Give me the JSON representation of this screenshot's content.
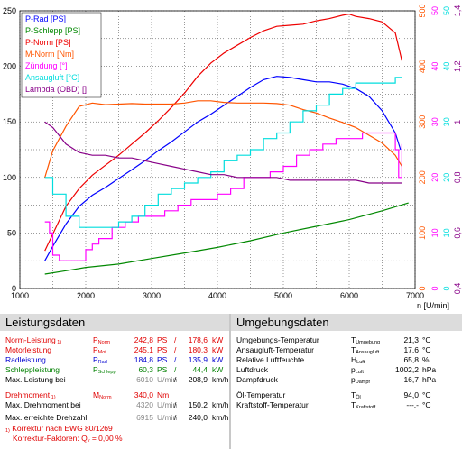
{
  "chart_data": {
    "type": "line",
    "x_axis": {
      "min": 1000,
      "max": 7000,
      "ticks": [
        "1000",
        "2000",
        "3000",
        "4000",
        "5000",
        "6000",
        "7000"
      ],
      "unit_label": "n [U/min]"
    },
    "left_axis": {
      "min": 0,
      "max": 250,
      "ticks": [
        "0",
        "50",
        "100",
        "150",
        "200",
        "250"
      ]
    },
    "right_axes": [
      {
        "name": "M-Norm [Nm]",
        "color": "#ff5500",
        "min": 0,
        "max": 500,
        "ticks": [
          "0",
          "100",
          "200",
          "300",
          "400",
          "500"
        ]
      },
      {
        "name": "Zündung [°]",
        "color": "#ff00ff",
        "min": 0,
        "max": 50,
        "ticks": [
          "0",
          "10",
          "20",
          "30",
          "40",
          "50"
        ]
      },
      {
        "name": "Ansaugluft [°C]",
        "color": "#00dddd",
        "min": 0,
        "max": 50,
        "ticks": [
          "0",
          "10",
          "20",
          "30",
          "40",
          "50"
        ]
      },
      {
        "name": "Lambda (OBD) []",
        "color": "#880088",
        "min": 0.4,
        "max": 1.4,
        "ticks": [
          "0,4",
          "0,6",
          "0,8",
          "1",
          "1,2",
          "1,4"
        ]
      }
    ],
    "grid": true,
    "legend_position": "top-left",
    "series": [
      {
        "name": "P-Rad [PS]",
        "color": "#0000ff",
        "axis": "left",
        "x": [
          1380,
          1500,
          1700,
          1900,
          2100,
          2300,
          2500,
          2700,
          2900,
          3100,
          3300,
          3500,
          3700,
          3900,
          4100,
          4300,
          4500,
          4700,
          4900,
          5100,
          5300,
          5500,
          5700,
          5900,
          6100,
          6300,
          6500,
          6700,
          6780
        ],
        "y": [
          25,
          38,
          58,
          74,
          84,
          91,
          99,
          107,
          115,
          124,
          132,
          141,
          150,
          157,
          165,
          173,
          181,
          188,
          191,
          190,
          188,
          186,
          186,
          184,
          180,
          173,
          160,
          140,
          125
        ]
      },
      {
        "name": "P-Schlepp [PS]",
        "color": "#008800",
        "axis": "left",
        "x": [
          1380,
          1700,
          2000,
          2500,
          3000,
          3500,
          4000,
          4500,
          5000,
          5500,
          6000,
          6500,
          6900
        ],
        "y": [
          13,
          16,
          19,
          22,
          27,
          32,
          37,
          43,
          50,
          56,
          62,
          70,
          77
        ]
      },
      {
        "name": "P-Norm [PS]",
        "color": "#ee0000",
        "axis": "left",
        "x": [
          1380,
          1500,
          1700,
          1900,
          2100,
          2300,
          2500,
          2700,
          2900,
          3100,
          3300,
          3500,
          3700,
          3900,
          4100,
          4300,
          4500,
          4700,
          4900,
          5100,
          5300,
          5500,
          5700,
          5900,
          6000,
          6100,
          6300,
          6500,
          6700,
          6800
        ],
        "y": [
          34,
          49,
          74,
          90,
          102,
          111,
          120,
          130,
          140,
          151,
          163,
          176,
          191,
          203,
          212,
          219,
          226,
          232,
          236,
          237,
          238,
          241,
          243,
          246,
          247,
          245,
          243,
          240,
          230,
          205
        ]
      },
      {
        "name": "M-Norm [Nm]",
        "color": "#ff5500",
        "axis": "right1",
        "x": [
          1380,
          1500,
          1700,
          1900,
          2100,
          2300,
          2500,
          2700,
          2900,
          3100,
          3300,
          3500,
          3700,
          3900,
          4100,
          4300,
          4500,
          4700,
          4900,
          5100,
          5300,
          5500,
          5700,
          5900,
          6100,
          6300,
          6500,
          6700,
          6800
        ],
        "y": [
          200,
          248,
          292,
          328,
          334,
          331,
          332,
          333,
          332,
          332,
          332,
          334,
          338,
          338,
          335,
          334,
          334,
          334,
          333,
          330,
          322,
          316,
          307,
          299,
          290,
          276,
          262,
          240,
          220
        ]
      },
      {
        "name": "Zündung [°]",
        "color": "#ff00ff",
        "axis": "right2",
        "x": [
          1380,
          1450,
          1500,
          1600,
          1800,
          2000,
          2100,
          2200,
          2400,
          2600,
          2800,
          3000,
          3200,
          3400,
          3600,
          3800,
          4000,
          4200,
          4400,
          4600,
          4800,
          5000,
          5200,
          5400,
          5600,
          5800,
          6000,
          6200,
          6400,
          6600,
          6700,
          6750,
          6800
        ],
        "y": [
          12,
          10,
          6,
          5,
          5,
          7,
          8,
          9,
          11,
          12,
          13,
          13,
          14,
          15,
          16,
          16,
          17,
          18,
          20,
          20,
          21,
          22,
          24,
          25,
          26,
          27,
          27,
          28,
          28,
          28,
          25,
          20,
          26
        ]
      },
      {
        "name": "Ansaugluft [°C]",
        "color": "#00dddd",
        "axis": "right3",
        "x": [
          1380,
          1500,
          1700,
          1900,
          2100,
          2300,
          2500,
          2700,
          2900,
          3100,
          3300,
          3500,
          3700,
          3900,
          4100,
          4300,
          4500,
          4700,
          4900,
          5100,
          5300,
          5500,
          5700,
          5900,
          6100,
          6300,
          6500,
          6700,
          6800
        ],
        "y": [
          20,
          17,
          13,
          11,
          11,
          11,
          12,
          13,
          15,
          17,
          18,
          19,
          20,
          21,
          23,
          24,
          25,
          27,
          28,
          30,
          32,
          33,
          35,
          36,
          37,
          37,
          37,
          38,
          38
        ]
      },
      {
        "name": "Lambda (OBD) []",
        "color": "#880088",
        "axis": "right4",
        "x": [
          1380,
          1500,
          1700,
          1900,
          2100,
          2300,
          2500,
          2700,
          2900,
          3100,
          3300,
          3500,
          3700,
          3900,
          4100,
          4300,
          4500,
          4700,
          4900,
          5100,
          5300,
          5500,
          5700,
          5900,
          6100,
          6300,
          6500,
          6700,
          6800
        ],
        "y": [
          1.0,
          0.98,
          0.92,
          0.89,
          0.88,
          0.88,
          0.87,
          0.87,
          0.86,
          0.85,
          0.84,
          0.83,
          0.82,
          0.81,
          0.81,
          0.8,
          0.8,
          0.8,
          0.8,
          0.79,
          0.79,
          0.79,
          0.79,
          0.79,
          0.79,
          0.78,
          0.78,
          0.78,
          0.78
        ]
      }
    ]
  },
  "leistung": {
    "title": "Leistungsdaten",
    "rows": [
      {
        "label": "Norm-Leistung",
        "note": "1)",
        "sym": "P",
        "sub": "Norm",
        "v1": "242,8",
        "u1": "PS",
        "v2": "178,6",
        "u2": "kW"
      },
      {
        "label": "Motorleistung",
        "note": "",
        "sym": "P",
        "sub": "Mot",
        "v1": "245,1",
        "u1": "PS",
        "v2": "180,3",
        "u2": "kW"
      },
      {
        "label": "Radleistung",
        "note": "",
        "sym": "P",
        "sub": "Rad",
        "v1": "184,8",
        "u1": "PS",
        "v2": "135,9",
        "u2": "kW"
      },
      {
        "label": "Schleppleistung",
        "note": "",
        "sym": "P",
        "sub": "Schlepp",
        "v1": "60,3",
        "u1": "PS",
        "v2": "44,4",
        "u2": "kW"
      },
      {
        "label": "Max. Leistung bei",
        "note": "",
        "sym": "",
        "sub": "",
        "v1": "6010",
        "u1": "U/min",
        "v2": "208,9",
        "u2": "km/h"
      },
      {
        "label": "Drehmoment",
        "note": "1)",
        "sym": "M",
        "sub": "Norm",
        "v1": "340,0",
        "u1": "Nm",
        "v2": "",
        "u2": ""
      },
      {
        "label": "Max. Drehmoment bei",
        "note": "",
        "sym": "",
        "sub": "",
        "v1": "4320",
        "u1": "U/min",
        "v2": "150,2",
        "u2": "km/h"
      },
      {
        "label": "Max. erreichte Drehzahl",
        "note": "",
        "sym": "",
        "sub": "",
        "v1": "6915",
        "u1": "U/min",
        "v2": "240,0",
        "u2": "km/h"
      }
    ],
    "footnote1": "Korrektur nach EWG 80/1269",
    "footnote1_mark": "1)",
    "footnote2_label": "Korrektur-Faktoren:",
    "footnote2_sym": "Q",
    "footnote2_sub": "v",
    "footnote2_value": "= 0,00 %"
  },
  "umgebung": {
    "title": "Umgebungsdaten",
    "rows": [
      {
        "label": "Umgebungs-Temperatur",
        "sym": "T",
        "sub": "Umgebung",
        "v": "21,3",
        "u": "°C"
      },
      {
        "label": "Ansaugluft-Temperatur",
        "sym": "T",
        "sub": "Ansaugluft",
        "v": "17,6",
        "u": "°C"
      },
      {
        "label": "Relative Luftfeuchte",
        "sym": "H",
        "sub": "Luft",
        "v": "65,8",
        "u": "%"
      },
      {
        "label": "Luftdruck",
        "sym": "p",
        "sub": "Luft",
        "v": "1002,2",
        "u": "hPa"
      },
      {
        "label": "Dampfdruck",
        "sym": "p",
        "sub": "Dampf",
        "v": "16,7",
        "u": "hPa"
      },
      {
        "label": "Öl-Temperatur",
        "sym": "T",
        "sub": "Öl",
        "v": "94,0",
        "u": "°C"
      },
      {
        "label": "Kraftstoff-Temperatur",
        "sym": "T",
        "sub": "Kraftstoff",
        "v": "---,-",
        "u": "°C"
      }
    ]
  }
}
